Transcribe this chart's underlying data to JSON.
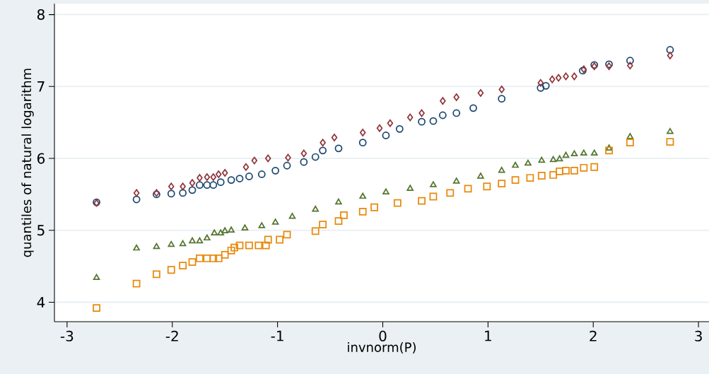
{
  "chart_data": {
    "type": "scatter",
    "xlabel": "invnorm(P)",
    "ylabel": "quantiles of natural logarithm",
    "xlim": [
      -3.12,
      3.1
    ],
    "ylim": [
      3.73,
      8.15
    ],
    "xticks": [
      -3,
      -2,
      -1,
      0,
      1,
      2,
      3
    ],
    "yticks": [
      4,
      5,
      6,
      7,
      8
    ],
    "grid": "y",
    "series": [
      {
        "color": "#1a476f",
        "marker": "circle",
        "x": [
          -2.72,
          -2.34,
          -2.15,
          -2.01,
          -1.9,
          -1.81,
          -1.74,
          -1.67,
          -1.61,
          -1.54,
          -1.44,
          -1.36,
          -1.27,
          -1.15,
          -1.02,
          -0.91,
          -0.75,
          -0.64,
          -0.57,
          -0.42,
          -0.19,
          0.03,
          0.16,
          0.37,
          0.48,
          0.57,
          0.7,
          0.86,
          1.13,
          1.5,
          1.55,
          1.9,
          2.01,
          2.15,
          2.35,
          2.73
        ],
        "values": [
          5.39,
          5.43,
          5.5,
          5.51,
          5.52,
          5.56,
          5.63,
          5.63,
          5.63,
          5.67,
          5.7,
          5.72,
          5.75,
          5.78,
          5.83,
          5.9,
          5.95,
          6.02,
          6.11,
          6.14,
          6.22,
          6.32,
          6.41,
          6.51,
          6.52,
          6.6,
          6.63,
          6.7,
          6.83,
          6.98,
          7.01,
          7.22,
          7.3,
          7.31,
          7.36,
          7.51
        ]
      },
      {
        "color": "#90353b",
        "marker": "diamond",
        "x": [
          -2.72,
          -2.34,
          -2.15,
          -2.01,
          -1.9,
          -1.81,
          -1.74,
          -1.67,
          -1.61,
          -1.56,
          -1.5,
          -1.3,
          -1.22,
          -1.09,
          -0.9,
          -0.75,
          -0.57,
          -0.46,
          -0.19,
          -0.03,
          0.07,
          0.26,
          0.37,
          0.57,
          0.7,
          0.93,
          1.13,
          1.5,
          1.61,
          1.67,
          1.74,
          1.82,
          1.91,
          2.01,
          2.15,
          2.35,
          2.73
        ],
        "values": [
          5.38,
          5.52,
          5.52,
          5.61,
          5.61,
          5.66,
          5.73,
          5.74,
          5.74,
          5.78,
          5.8,
          5.88,
          5.97,
          6.0,
          6.01,
          6.07,
          6.22,
          6.29,
          6.36,
          6.42,
          6.49,
          6.57,
          6.63,
          6.8,
          6.85,
          6.91,
          6.96,
          7.05,
          7.1,
          7.12,
          7.14,
          7.14,
          7.24,
          7.28,
          7.28,
          7.29,
          7.43
        ]
      },
      {
        "color": "#55752f",
        "marker": "triangle",
        "x": [
          -2.72,
          -2.34,
          -2.15,
          -2.01,
          -1.9,
          -1.81,
          -1.74,
          -1.67,
          -1.6,
          -1.54,
          -1.5,
          -1.44,
          -1.31,
          -1.15,
          -1.02,
          -0.86,
          -0.64,
          -0.42,
          -0.19,
          0.03,
          0.26,
          0.48,
          0.7,
          0.93,
          1.13,
          1.26,
          1.38,
          1.51,
          1.62,
          1.68,
          1.74,
          1.82,
          1.91,
          2.01,
          2.15,
          2.35,
          2.73
        ],
        "values": [
          4.34,
          4.75,
          4.77,
          4.8,
          4.81,
          4.85,
          4.85,
          4.89,
          4.96,
          4.96,
          4.99,
          5.0,
          5.03,
          5.06,
          5.11,
          5.19,
          5.29,
          5.39,
          5.47,
          5.53,
          5.58,
          5.63,
          5.68,
          5.75,
          5.83,
          5.9,
          5.93,
          5.97,
          5.98,
          5.99,
          6.04,
          6.06,
          6.07,
          6.07,
          6.14,
          6.3,
          6.37
        ]
      },
      {
        "color": "#e8890c",
        "marker": "square",
        "x": [
          -2.72,
          -2.34,
          -2.15,
          -2.01,
          -1.9,
          -1.81,
          -1.74,
          -1.67,
          -1.61,
          -1.56,
          -1.5,
          -1.44,
          -1.41,
          -1.36,
          -1.27,
          -1.18,
          -1.11,
          -1.09,
          -0.98,
          -0.91,
          -0.64,
          -0.57,
          -0.42,
          -0.37,
          -0.19,
          -0.08,
          0.14,
          0.37,
          0.48,
          0.64,
          0.81,
          0.99,
          1.13,
          1.26,
          1.4,
          1.51,
          1.62,
          1.68,
          1.74,
          1.82,
          1.91,
          2.01,
          2.15,
          2.35,
          2.73
        ],
        "values": [
          3.92,
          4.26,
          4.39,
          4.45,
          4.51,
          4.56,
          4.61,
          4.61,
          4.61,
          4.61,
          4.66,
          4.72,
          4.76,
          4.79,
          4.79,
          4.79,
          4.79,
          4.87,
          4.87,
          4.94,
          4.99,
          5.08,
          5.13,
          5.21,
          5.26,
          5.32,
          5.38,
          5.41,
          5.47,
          5.52,
          5.58,
          5.61,
          5.65,
          5.7,
          5.73,
          5.76,
          5.77,
          5.82,
          5.83,
          5.83,
          5.87,
          5.88,
          6.11,
          6.22,
          6.23
        ]
      }
    ]
  }
}
